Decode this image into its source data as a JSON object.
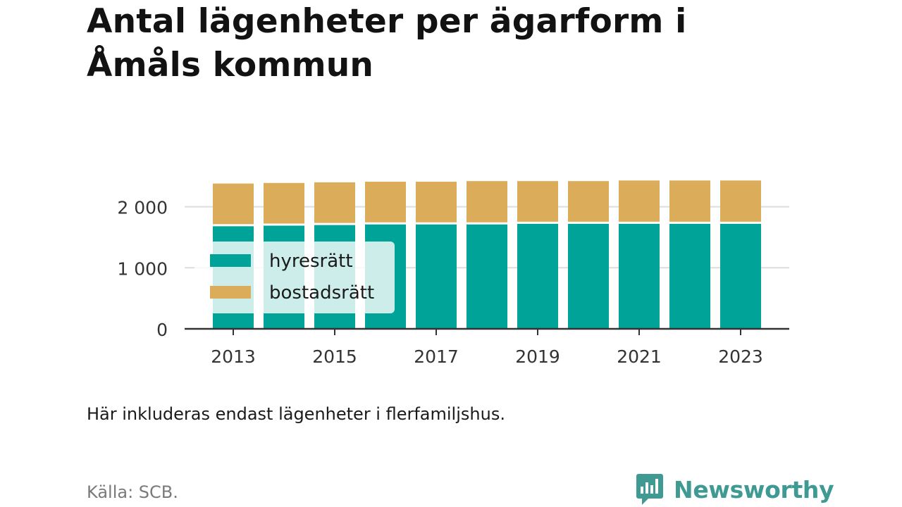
{
  "header": {
    "title": "Antal lägenheter per ägarform i Åmåls kommun"
  },
  "footer": {
    "note": "Här inkluderas endast lägenheter i flerfamiljshus.",
    "source": "Källa: SCB.",
    "brand": "Newsworthy"
  },
  "colors": {
    "hyresratt": "#00a398",
    "bostadsratt": "#dbad5a",
    "grid": "#dddddd",
    "axis": "#333333",
    "brand": "#3e9a93"
  },
  "chart_data": {
    "type": "bar",
    "stacked": true,
    "categories": [
      "2013",
      "2014",
      "2015",
      "2016",
      "2017",
      "2018",
      "2019",
      "2020",
      "2021",
      "2022",
      "2023"
    ],
    "x_tick_labels": [
      "2013",
      "2015",
      "2017",
      "2019",
      "2021",
      "2023"
    ],
    "y_ticks": [
      0,
      1000,
      2000
    ],
    "y_tick_labels": [
      "0",
      "1 000",
      "2 000"
    ],
    "ylim": [
      0,
      2400
    ],
    "grid": true,
    "legend_position": "left, inside plot",
    "series": [
      {
        "name": "hyresrätt",
        "color": "#00a398",
        "values": [
          1680,
          1690,
          1700,
          1710,
          1710,
          1710,
          1720,
          1720,
          1720,
          1720,
          1720
        ]
      },
      {
        "name": "bostadsrätt",
        "color": "#dbad5a",
        "values": [
          700,
          700,
          700,
          700,
          700,
          710,
          700,
          700,
          710,
          710,
          710
        ]
      }
    ]
  }
}
